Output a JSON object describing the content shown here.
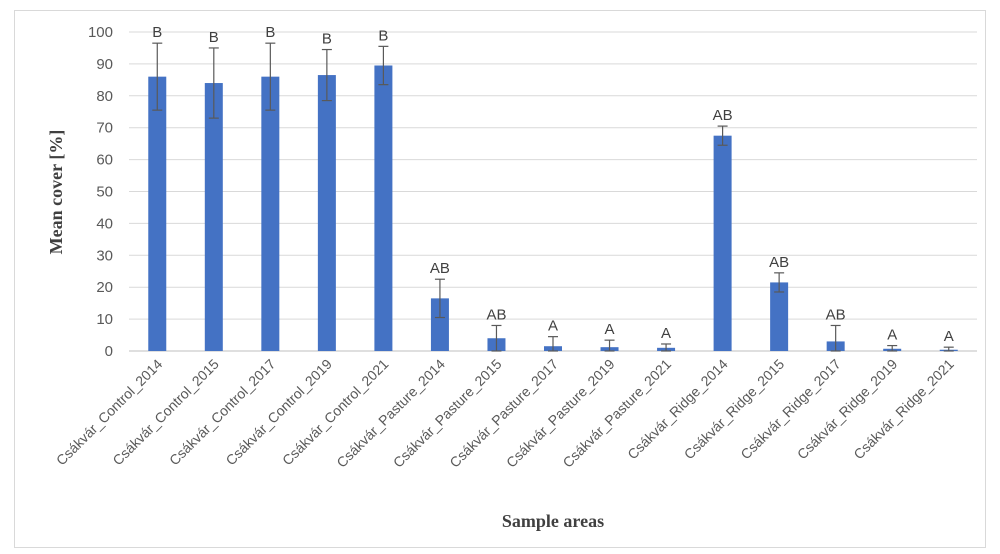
{
  "chart_data": {
    "type": "bar",
    "title": "",
    "xlabel": "Sample areas",
    "ylabel": "Mean cover [%]",
    "ylim": [
      0,
      100
    ],
    "yticks": [
      0,
      10,
      20,
      30,
      40,
      50,
      60,
      70,
      80,
      90,
      100
    ],
    "grid": "horizontal",
    "legend": "none",
    "bar_color": "#4472c4",
    "categories": [
      "Csákvár_Control_2014",
      "Csákvár_Control_2015",
      "Csákvár_Control_2017",
      "Csákvár_Control_2019",
      "Csákvár_Control_2021",
      "Csákvár_Pasture_2014",
      "Csákvár_Pasture_2015",
      "Csákvár_Pasture_2017",
      "Csákvár_Pasture_2019",
      "Csákvár_Pasture_2021",
      "Csákvár_Ridge_2014",
      "Csákvár_Ridge_2015",
      "Csákvár_Ridge_2017",
      "Csákvár_Ridge_2019",
      "Csákvár_Ridge_2021"
    ],
    "values": [
      86,
      84,
      86,
      86.5,
      89.5,
      16.5,
      4,
      1.5,
      1.2,
      1,
      67.5,
      21.5,
      3,
      0.7,
      0.4
    ],
    "error": [
      10.5,
      11,
      10.5,
      8,
      6,
      6,
      4,
      3,
      2.2,
      1.2,
      3,
      3,
      5,
      1,
      0.8
    ],
    "significance": [
      "B",
      "B",
      "B",
      "B",
      "B",
      "AB",
      "AB",
      "A",
      "A",
      "A",
      "AB",
      "AB",
      "AB",
      "A",
      "A"
    ]
  }
}
